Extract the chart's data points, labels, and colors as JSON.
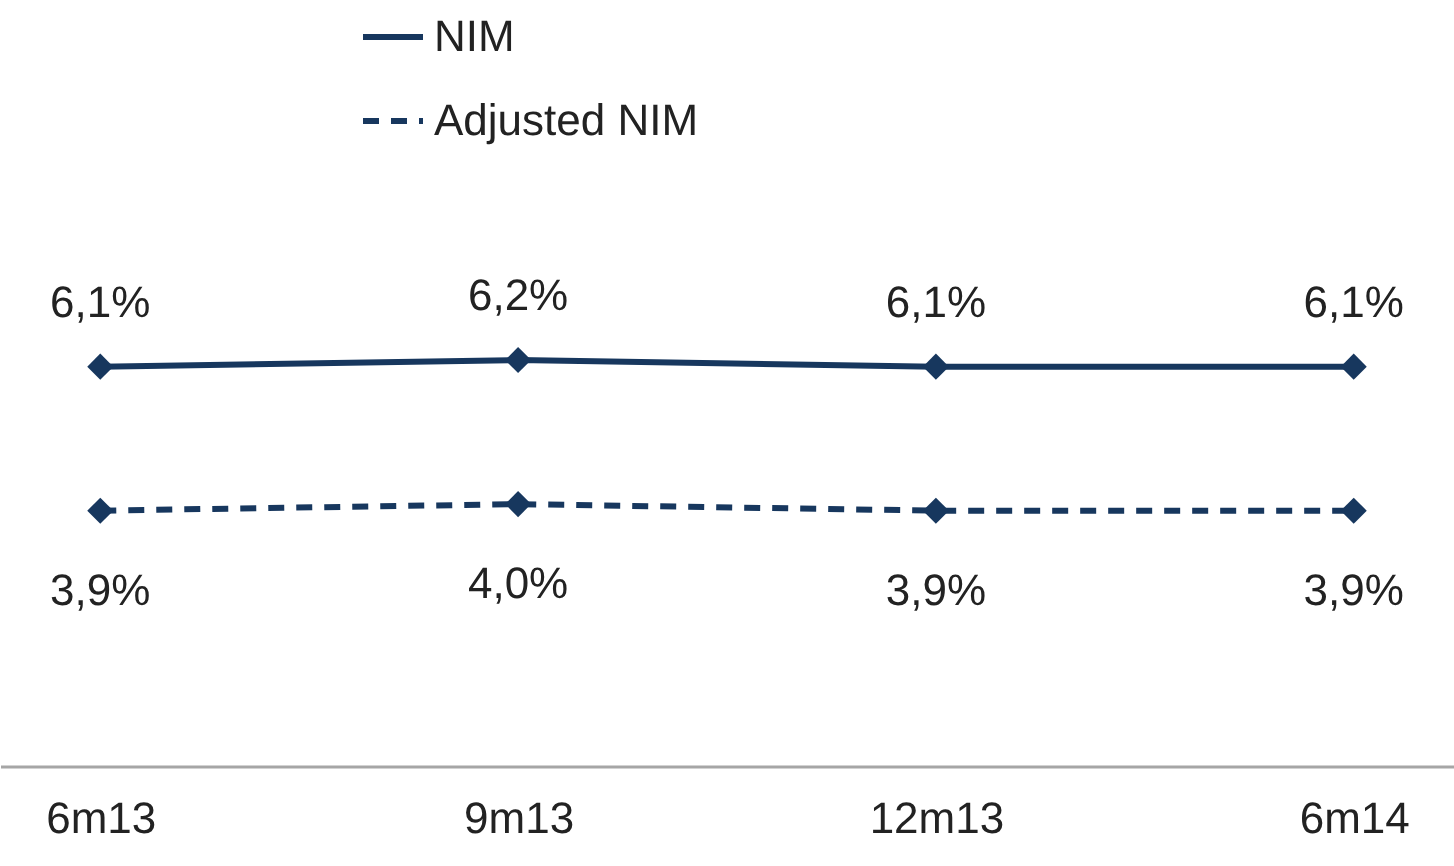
{
  "chart_data": {
    "type": "line",
    "categories": [
      "6m13",
      "9m13",
      "12m13",
      "6m14"
    ],
    "series": [
      {
        "name": "NIM",
        "color": "#17375e",
        "values": [
          6.1,
          6.2,
          6.1,
          6.1
        ],
        "value_labels": [
          "6,1%",
          "6,2%",
          "6,1%",
          "6,1%"
        ],
        "line_style": "solid"
      },
      {
        "name": "Adjusted NIM",
        "color": "#17375e",
        "values": [
          3.9,
          4.0,
          3.9,
          3.9
        ],
        "value_labels": [
          "3,9%",
          "4,0%",
          "3,9%",
          "3,9%"
        ],
        "line_style": "dashed"
      }
    ],
    "ylim": [
      0,
      11.7
    ],
    "tick_labels": "x",
    "marker": "diamond",
    "legend": "top",
    "grid": false
  }
}
